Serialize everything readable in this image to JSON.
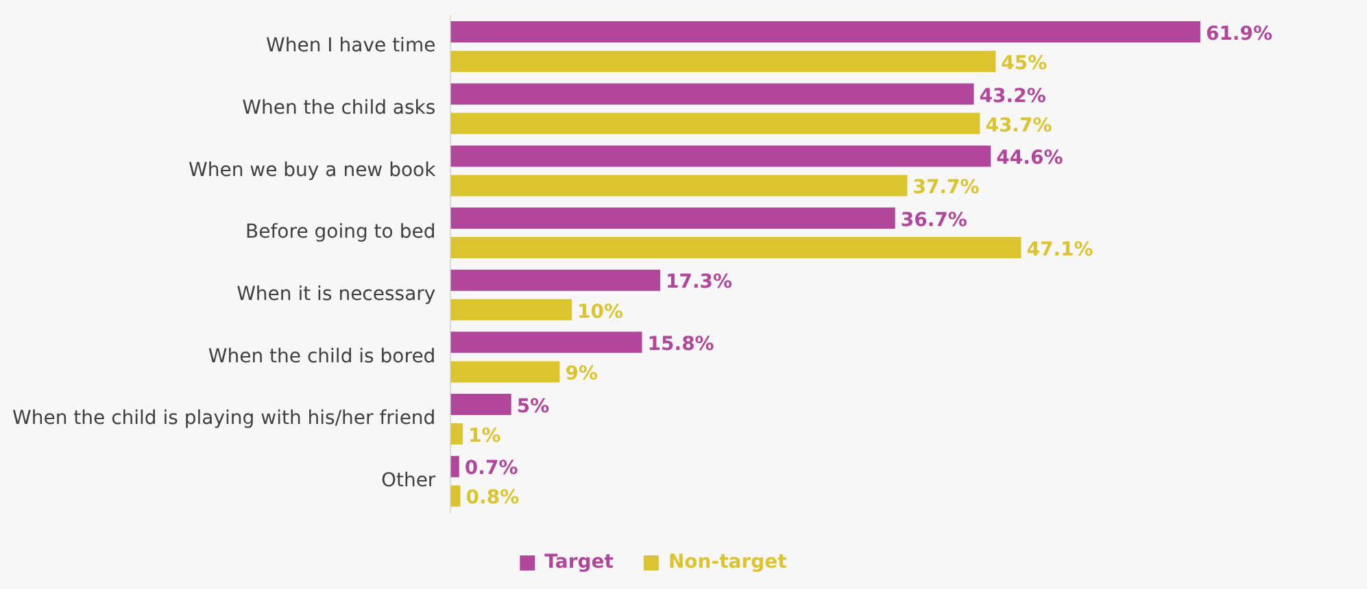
{
  "chart_data": {
    "type": "bar",
    "orientation": "horizontal",
    "categories": [
      "When I have time",
      "When the child asks",
      "When we buy a new book",
      "Before going to bed",
      "When it is necessary",
      "When the child is bored",
      "When the child is playing with his/her friend",
      "Other"
    ],
    "series": [
      {
        "name": "Target",
        "color": "#b0479b",
        "values": [
          61.9,
          43.2,
          44.6,
          36.7,
          17.3,
          15.8,
          5,
          0.7
        ],
        "value_labels": [
          "61.9%",
          "43.2%",
          "44.6%",
          "36.7%",
          "17.3%",
          "15.8%",
          "5%",
          "0.7%"
        ]
      },
      {
        "name": "Non-target",
        "color": "#dbc42f",
        "values": [
          45,
          43.7,
          37.7,
          47.1,
          10,
          9,
          1,
          0.8
        ],
        "value_labels": [
          "45%",
          "43.7%",
          "37.7%",
          "47.1%",
          "10%",
          "9%",
          "1%",
          "0.8%"
        ]
      }
    ],
    "grid": false,
    "legend": "bottom"
  }
}
